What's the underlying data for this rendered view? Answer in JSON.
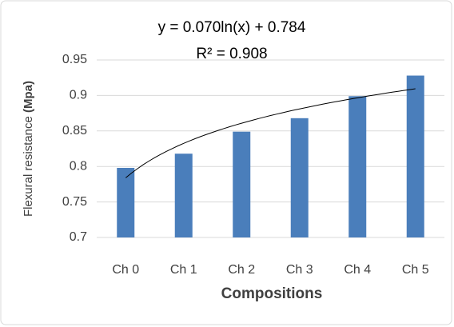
{
  "chart_data": {
    "type": "bar",
    "categories": [
      "Ch 0",
      "Ch 1",
      "Ch 2",
      "Ch 3",
      "Ch 4",
      "Ch 5"
    ],
    "values": [
      0.798,
      0.818,
      0.849,
      0.868,
      0.899,
      0.928
    ],
    "color": "#4a7ebb",
    "ylim": [
      0.7,
      0.95
    ],
    "yticks": [
      0.7,
      0.75,
      0.8,
      0.85,
      0.9,
      0.95
    ],
    "grid": true,
    "x_label": "Compositions",
    "y_label": {
      "text": "Flexural resistance",
      "unit": "(Mpa)"
    },
    "trendline": {
      "type": "log",
      "equation": "y = 0.070ln(x) + 0.784",
      "r2": "R² = 0.908",
      "coefficient": 0.07,
      "intercept": 0.784
    }
  }
}
